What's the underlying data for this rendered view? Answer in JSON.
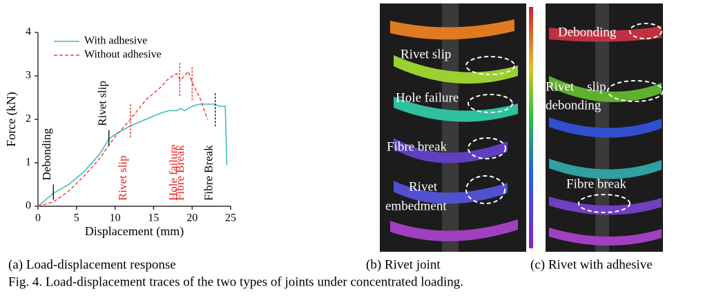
{
  "chart_data": {
    "type": "line",
    "xlabel": "Displacement (mm)",
    "ylabel": "Force (kN)",
    "x": [
      0,
      2,
      4,
      6,
      8,
      9.2,
      10,
      12,
      14,
      16,
      17,
      18,
      18.5,
      19,
      19.5,
      20,
      21,
      22,
      23,
      23.5,
      24.3,
      24.5
    ],
    "series": [
      {
        "name": "With adhesive",
        "color": "#3bb6b8",
        "dash": false,
        "values": [
          0,
          0.3,
          0.5,
          0.8,
          1.2,
          1.55,
          1.65,
          1.85,
          2.0,
          2.15,
          2.2,
          2.2,
          2.25,
          2.2,
          2.25,
          2.3,
          2.35,
          2.35,
          2.35,
          2.3,
          2.3,
          0.95
        ]
      },
      {
        "name": "Without adhesive",
        "color": "#e8473c",
        "dash": true,
        "values": [
          0,
          0.1,
          0.35,
          0.7,
          1.1,
          1.4,
          1.6,
          2.0,
          2.45,
          2.75,
          2.95,
          3.05,
          2.9,
          3.0,
          3.1,
          2.85,
          2.5,
          2.0,
          null,
          null,
          null,
          null
        ]
      }
    ],
    "xlim": [
      0,
      25
    ],
    "xticks": [
      0,
      5,
      10,
      15,
      20,
      25
    ],
    "ylim": [
      0,
      4
    ],
    "yticks": [
      0,
      1,
      2,
      3,
      4
    ],
    "legend": "upper left",
    "annotations": [
      {
        "text": "Debonding",
        "x": 2,
        "y": 0.5,
        "color": "#000000",
        "dash": false
      },
      {
        "text": "Rivet slip",
        "x": 9.2,
        "y": 1.75,
        "color": "#000000",
        "dash": false
      },
      {
        "text": "Rivet slip",
        "x": 12,
        "y": 2.35,
        "color": "#e8231c",
        "dash": true
      },
      {
        "text": "Hole failure",
        "x": 18.4,
        "y": 3.3,
        "color": "#e8231c",
        "dash": true
      },
      {
        "text": "Fibre Break",
        "x": 20,
        "y": 3.2,
        "color": "#e8231c",
        "dash": true
      },
      {
        "text": "Fibre Break",
        "x": 23,
        "y": 2.6,
        "color": "#000000",
        "dash": true
      }
    ]
  },
  "panels": {
    "a": {
      "caption": "(a) Load-displacement response"
    },
    "b": {
      "caption": "(b) Rivet joint",
      "labels": [
        "Rivet slip",
        "Hole failure",
        "Fibre break",
        "Rivet",
        "embedment"
      ]
    },
    "c": {
      "caption": "(c) Rivet with adhesive",
      "labels": [
        "Debonding",
        "Rivet    slip",
        "debonding",
        "Fibre break"
      ]
    }
  },
  "figure_caption": "Fig. 4. Load-displacement traces of the two types of joints under concentrated loading."
}
